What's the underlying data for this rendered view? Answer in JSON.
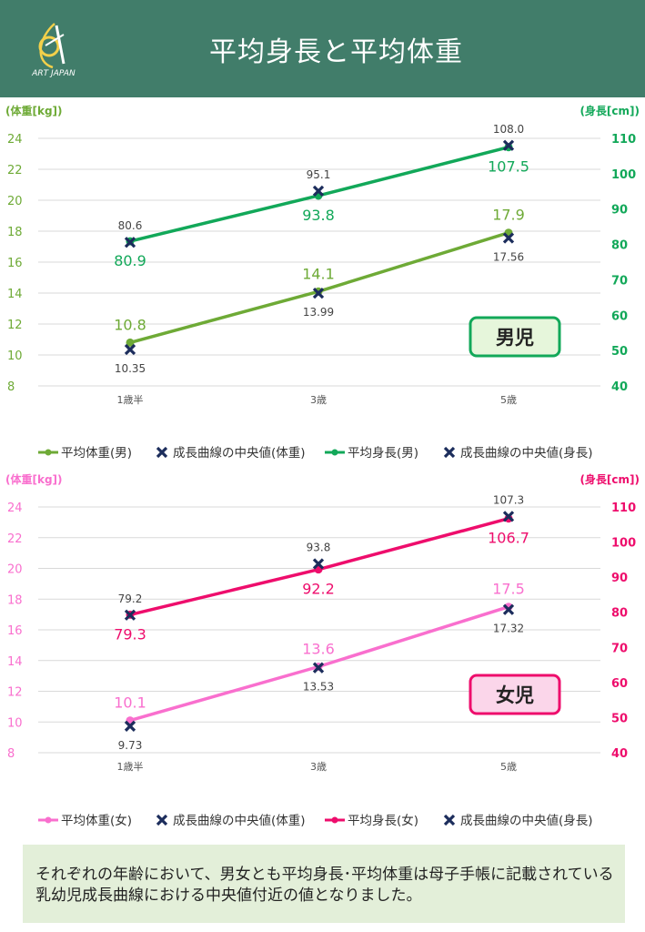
{
  "header": {
    "title": "平均身長と平均体重",
    "logo_text": "ART JAPAN"
  },
  "colors": {
    "header_bg": "#417d6a",
    "boy_weight": "#6eaa36",
    "boy_height": "#12a859",
    "girl_weight": "#f96fce",
    "girl_height": "#ee0d6c",
    "median_marker": "#1c2d5c",
    "note_bg": "#e3efd9"
  },
  "chart_data": [
    {
      "type": "line",
      "title": "男児",
      "categories": [
        "1歳半",
        "3歳",
        "5歳"
      ],
      "ylabel": "(体重[kg])",
      "y2label": "(身長[cm])",
      "ylim": [
        8,
        24
      ],
      "y2lim": [
        40,
        110
      ],
      "yticks": [
        8,
        10,
        12,
        14,
        16,
        18,
        20,
        22,
        24
      ],
      "y2ticks": [
        40,
        50,
        60,
        70,
        80,
        90,
        100,
        110
      ],
      "series": [
        {
          "name": "平均体重(男)",
          "axis": "left",
          "values": [
            10.8,
            14.1,
            17.9
          ],
          "labels": [
            "10.8",
            "14.1",
            "17.9"
          ]
        },
        {
          "name": "成長曲線の中央値(体重)",
          "axis": "left",
          "values": [
            10.35,
            13.99,
            17.56
          ],
          "labels": [
            "10.35",
            "13.99",
            "17.56"
          ]
        },
        {
          "name": "平均身長(男)",
          "axis": "right",
          "values": [
            80.9,
            93.8,
            107.5
          ],
          "labels": [
            "80.9",
            "93.8",
            "107.5"
          ]
        },
        {
          "name": "成長曲線の中央値(身長)",
          "axis": "right",
          "values": [
            80.6,
            95.1,
            108.0
          ],
          "labels": [
            "80.6",
            "95.1",
            "108.0"
          ]
        }
      ]
    },
    {
      "type": "line",
      "title": "女児",
      "categories": [
        "1歳半",
        "3歳",
        "5歳"
      ],
      "ylabel": "(体重[kg])",
      "y2label": "(身長[cm])",
      "ylim": [
        8,
        24
      ],
      "y2lim": [
        40,
        110
      ],
      "yticks": [
        8,
        10,
        12,
        14,
        16,
        18,
        20,
        22,
        24
      ],
      "y2ticks": [
        40,
        50,
        60,
        70,
        80,
        90,
        100,
        110
      ],
      "series": [
        {
          "name": "平均体重(女)",
          "axis": "left",
          "values": [
            10.1,
            13.6,
            17.5
          ],
          "labels": [
            "10.1",
            "13.6",
            "17.5"
          ]
        },
        {
          "name": "成長曲線の中央値(体重)",
          "axis": "left",
          "values": [
            9.73,
            13.53,
            17.32
          ],
          "labels": [
            "9.73",
            "13.53",
            "17.32"
          ]
        },
        {
          "name": "平均身長(女)",
          "axis": "right",
          "values": [
            79.3,
            92.2,
            106.7
          ],
          "labels": [
            "79.3",
            "92.2",
            "106.7"
          ]
        },
        {
          "name": "成長曲線の中央値(身長)",
          "axis": "right",
          "values": [
            79.2,
            93.8,
            107.3
          ],
          "labels": [
            "79.2",
            "93.8",
            "107.3"
          ]
        }
      ]
    }
  ],
  "note": {
    "text": "それぞれの年齢において、男女とも平均身長･平均体重は母子手帳に記載されている乳幼児成長曲線における中央値付近の値となりました。"
  }
}
